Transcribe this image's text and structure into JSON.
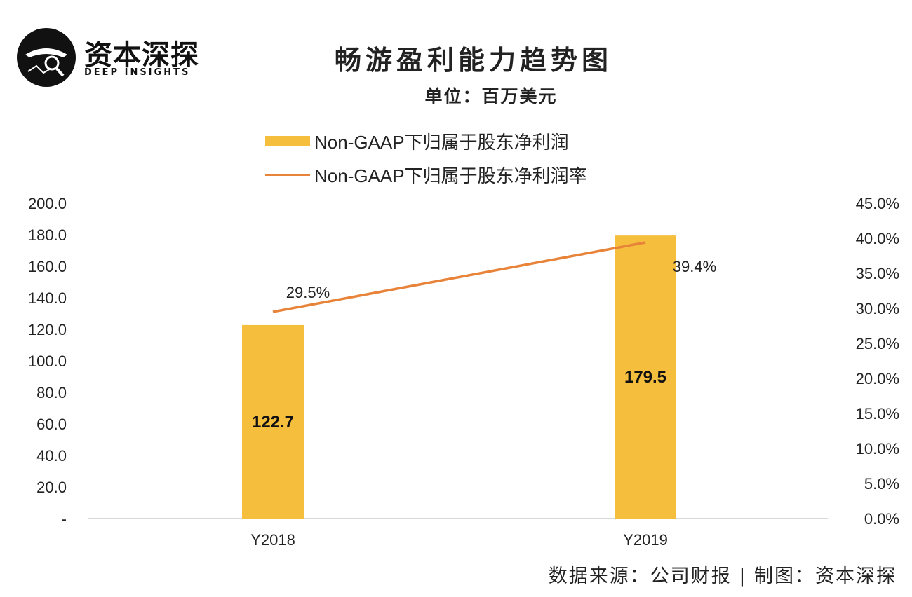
{
  "brand": {
    "name_cn": "资本深探",
    "name_en": "DEEP INSIGHTS"
  },
  "chart_data": {
    "type": "bar",
    "title": "畅游盈利能力趋势图",
    "subtitle": "单位：百万美元",
    "categories": [
      "Y2018",
      "Y2019"
    ],
    "series": [
      {
        "name": "Non-GAAP下归属于股东净利润",
        "type": "bar",
        "axis": "left",
        "values": [
          122.7,
          179.5
        ],
        "labels": [
          "122.7",
          "179.5"
        ],
        "color": "#F5BF3D"
      },
      {
        "name": "Non-GAAP下归属于股东净利润率",
        "type": "line",
        "axis": "right",
        "values": [
          29.5,
          39.4
        ],
        "labels": [
          "29.5%",
          "39.4%"
        ],
        "color": "#E8833A"
      }
    ],
    "y_left": {
      "range": [
        0,
        200
      ],
      "ticks": [
        0,
        20,
        40,
        60,
        80,
        100,
        120,
        140,
        160,
        180,
        200
      ],
      "tick_labels": [
        "-",
        "20.0",
        "40.0",
        "60.0",
        "80.0",
        "100.0",
        "120.0",
        "140.0",
        "160.0",
        "180.0",
        "200.0"
      ]
    },
    "y_right": {
      "range": [
        0,
        45
      ],
      "ticks": [
        0,
        5,
        10,
        15,
        20,
        25,
        30,
        35,
        40,
        45
      ],
      "tick_labels": [
        "0.0%",
        "5.0%",
        "10.0%",
        "15.0%",
        "20.0%",
        "25.0%",
        "30.0%",
        "35.0%",
        "40.0%",
        "45.0%"
      ]
    },
    "grid": false,
    "legend_position": "top"
  },
  "source_text": "数据来源：公司财报 | 制图：资本深探"
}
